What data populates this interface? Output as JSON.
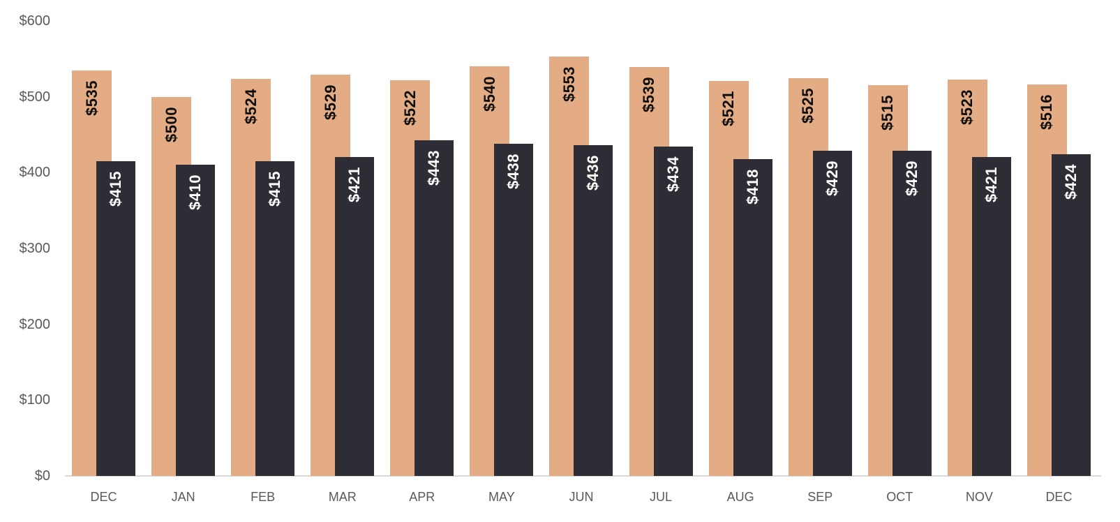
{
  "chart_data": {
    "type": "bar",
    "title": "",
    "categories": [
      "DEC",
      "JAN",
      "FEB",
      "MAR",
      "APR",
      "MAY",
      "JUN",
      "JUL",
      "AUG",
      "SEP",
      "OCT",
      "NOV",
      "DEC"
    ],
    "series": [
      {
        "name": "series-1-tan",
        "color": "#E4AC85",
        "label_color": "#0d0d0d",
        "values": [
          535,
          500,
          524,
          529,
          522,
          540,
          553,
          539,
          521,
          525,
          515,
          523,
          516
        ]
      },
      {
        "name": "series-2-dark",
        "color": "#2E2D36",
        "label_color": "#ffffff",
        "values": [
          415,
          410,
          415,
          421,
          443,
          438,
          436,
          434,
          418,
          429,
          429,
          421,
          424
        ]
      }
    ],
    "value_prefix": "$",
    "xlabel": "",
    "ylabel": "",
    "ylim": [
      0,
      600
    ],
    "y_tick_values": [
      600,
      500,
      400,
      300,
      200,
      100,
      0
    ],
    "y_tick_labels": [
      "$600",
      "$500",
      "$400",
      "$300",
      "$200",
      "$100",
      "$0"
    ],
    "grid": false,
    "legend_position": "none",
    "axis_text_color": "#595959",
    "axis_line_color": "#d9d9d9"
  },
  "layout_note": "overlapped paired column chart, tan bars behind, dark bars in front, rotated value labels inside bars"
}
